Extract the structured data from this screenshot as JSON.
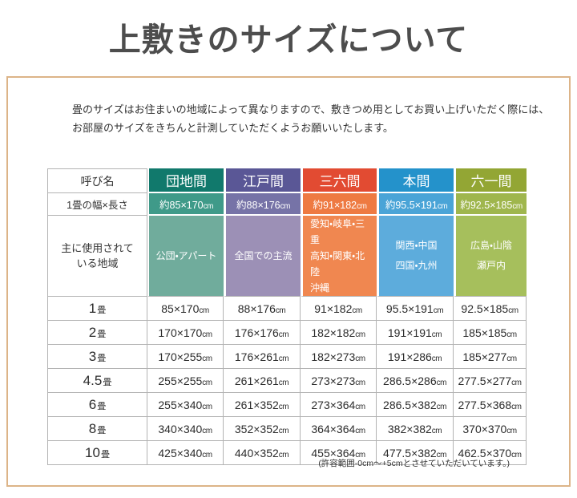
{
  "page_title": "上敷きのサイズについて",
  "intro": {
    "line1": "畳のサイズはお住まいの地域によって異なりますので、敷きつめ用としてお買い上げいただく際には、",
    "line2": "お部屋のサイズをきちんと計測していただくようお願いいたします。"
  },
  "footnote": "(許容範囲-0cm～+5cmとさせていただいています。)",
  "table": {
    "corner_label": "呼び名",
    "size_row_label": "1畳の幅×長さ",
    "region_label_lines": [
      "主に使用されて",
      "いる地域"
    ],
    "cm_label": "cm",
    "tatami_label": "畳",
    "columns": [
      {
        "name": "団地間",
        "size": "約85×170",
        "regions": [
          "公団・アパート"
        ],
        "header_color": "#11796c",
        "size_color": "#3f9a89",
        "region_color": "#70ac9c",
        "region_align": "center"
      },
      {
        "name": "江戸間",
        "size": "約88×176",
        "regions": [
          "全国での主流"
        ],
        "header_color": "#5a5796",
        "size_color": "#7673a7",
        "region_color": "#9c90b6",
        "region_align": "center"
      },
      {
        "name": "三六間",
        "size": "約91×182",
        "regions": [
          "愛知・岐阜・三重",
          "高知・関東・北陸",
          "沖縄"
        ],
        "header_color": "#e24b32",
        "size_color": "#ee7a42",
        "region_color": "#f08750",
        "region_align": "left"
      },
      {
        "name": "本間",
        "size": "約95.5×191",
        "regions": [
          "関西・中国",
          "四国・九州"
        ],
        "header_color": "#2492cb",
        "size_color": "#4aa4d7",
        "region_color": "#5dacdc",
        "region_align": "center"
      },
      {
        "name": "六一間",
        "size": "約92.5×185",
        "regions": [
          "広島・山陰",
          "瀬戸内"
        ],
        "header_color": "#93a634",
        "size_color": "#9fb64d",
        "region_color": "#a6bf5c",
        "region_align": "center"
      }
    ],
    "rows": [
      {
        "num": "1",
        "values": [
          "85×170",
          "88×176",
          "91×182",
          "95.5×191",
          "92.5×185"
        ]
      },
      {
        "num": "2",
        "values": [
          "170×170",
          "176×176",
          "182×182",
          "191×191",
          "185×185"
        ]
      },
      {
        "num": "3",
        "values": [
          "170×255",
          "176×261",
          "182×273",
          "191×286",
          "185×277"
        ]
      },
      {
        "num": "4.5",
        "values": [
          "255×255",
          "261×261",
          "273×273",
          "286.5×286",
          "277.5×277"
        ]
      },
      {
        "num": "6",
        "values": [
          "255×340",
          "261×352",
          "273×364",
          "286.5×382",
          "277.5×368"
        ]
      },
      {
        "num": "8",
        "values": [
          "340×340",
          "352×352",
          "364×364",
          "382×382",
          "370×370"
        ]
      },
      {
        "num": "10",
        "values": [
          "425×340",
          "440×352",
          "455×364",
          "477.5×382",
          "462.5×370"
        ]
      }
    ]
  }
}
